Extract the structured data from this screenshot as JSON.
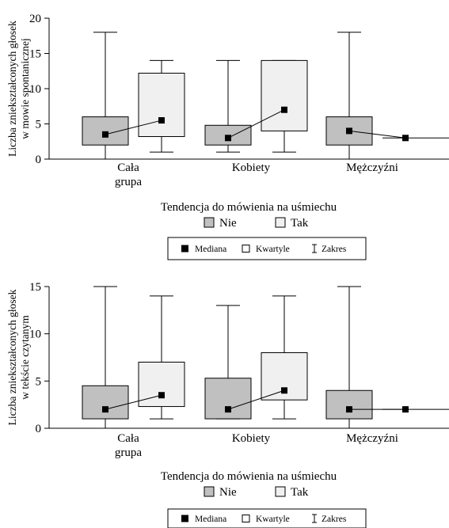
{
  "chart_data": [
    {
      "type": "box",
      "ylabel_lines": [
        "Liczba zniekształconych głosek",
        "w mowie spontanicznej"
      ],
      "xlabel": "Tendencja do mówienia na uśmiechu",
      "ylim": [
        0,
        20
      ],
      "yticks": [
        "0",
        "5",
        "10",
        "15",
        "20"
      ],
      "groups": [
        {
          "label_lines": [
            "Cała",
            "grupa"
          ]
        },
        {
          "label_lines": [
            "Kobiety"
          ]
        },
        {
          "label_lines": [
            "Mężczyźni"
          ]
        }
      ],
      "series": [
        {
          "name": "Nie",
          "color": "#c0c0c0",
          "boxes": [
            {
              "min": 0,
              "q1": 2,
              "median": 3.5,
              "q3": 6,
              "max": 18
            },
            {
              "min": 1,
              "q1": 2,
              "median": 3,
              "q3": 4.8,
              "max": 14
            },
            {
              "min": 0,
              "q1": 2,
              "median": 4,
              "q3": 6,
              "max": 18
            }
          ]
        },
        {
          "name": "Tak",
          "color": "#f0f0f0",
          "boxes": [
            {
              "min": 1,
              "q1": 3.2,
              "median": 5.5,
              "q3": 12.2,
              "max": 14
            },
            {
              "min": 1,
              "q1": 4,
              "median": 7,
              "q3": 14,
              "max": 14
            },
            {
              "min": 3,
              "q1": 3,
              "median": 3,
              "q3": 3,
              "max": 3
            }
          ]
        }
      ],
      "legend_series": [
        "Nie",
        "Tak"
      ],
      "legend_stats": [
        "Mediana",
        "Kwartyle",
        "Zakres"
      ]
    },
    {
      "type": "box",
      "ylabel_lines": [
        "Liczba zniekształconych głosek",
        "w tekście czytanym"
      ],
      "xlabel": "Tendencja do mówienia na uśmiechu",
      "ylim": [
        0,
        15
      ],
      "yticks": [
        "0",
        "5",
        "10",
        "15"
      ],
      "groups": [
        {
          "label_lines": [
            "Cała",
            "grupa"
          ]
        },
        {
          "label_lines": [
            "Kobiety"
          ]
        },
        {
          "label_lines": [
            "Mężczyźni"
          ]
        }
      ],
      "series": [
        {
          "name": "Nie",
          "color": "#c0c0c0",
          "boxes": [
            {
              "min": 0,
              "q1": 1,
              "median": 2,
              "q3": 4.5,
              "max": 15
            },
            {
              "min": 1,
              "q1": 1,
              "median": 2,
              "q3": 5.3,
              "max": 13
            },
            {
              "min": 0,
              "q1": 1,
              "median": 2,
              "q3": 4,
              "max": 15
            }
          ]
        },
        {
          "name": "Tak",
          "color": "#f0f0f0",
          "boxes": [
            {
              "min": 1,
              "q1": 2.3,
              "median": 3.5,
              "q3": 7,
              "max": 14
            },
            {
              "min": 1,
              "q1": 3,
              "median": 4,
              "q3": 8,
              "max": 14
            },
            {
              "min": 2,
              "q1": 2,
              "median": 2,
              "q3": 2,
              "max": 2
            }
          ]
        }
      ],
      "legend_series": [
        "Nie",
        "Tak"
      ],
      "legend_stats": [
        "Mediana",
        "Kwartyle",
        "Zakres"
      ]
    }
  ]
}
